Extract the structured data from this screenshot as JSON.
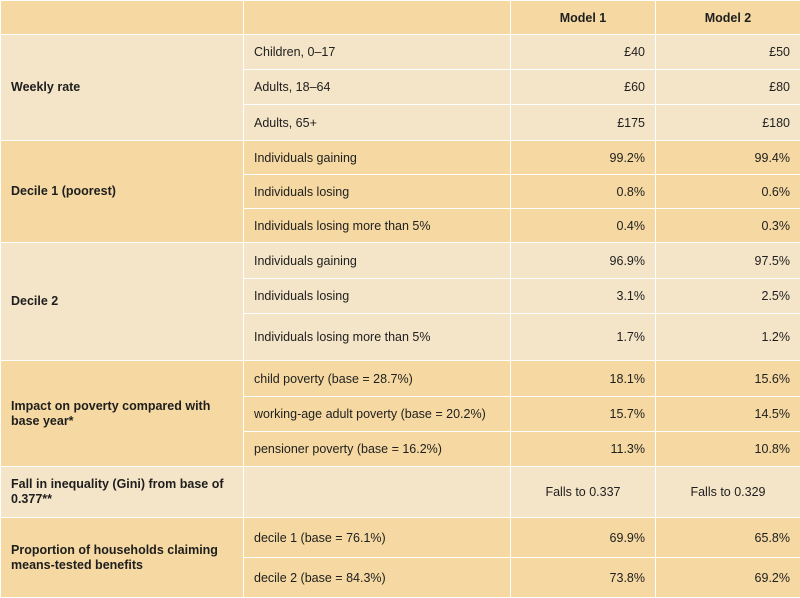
{
  "header": {
    "col1": "",
    "col2": "",
    "model1": "Model 1",
    "model2": "Model 2"
  },
  "groups": [
    {
      "label": "Weekly rate",
      "rows": [
        {
          "item": "Children, 0–17",
          "m1": "£40",
          "m2": "£50"
        },
        {
          "item": "Adults, 18–64",
          "m1": "£60",
          "m2": "£80"
        },
        {
          "item": "Adults, 65+",
          "m1": "£175",
          "m2": "£180"
        }
      ]
    },
    {
      "label": "Decile 1 (poorest)",
      "rows": [
        {
          "item": "Individuals gaining",
          "m1": "99.2%",
          "m2": "99.4%"
        },
        {
          "item": "Individuals losing",
          "m1": "0.8%",
          "m2": "0.6%"
        },
        {
          "item": "Individuals losing more than 5%",
          "m1": "0.4%",
          "m2": "0.3%"
        }
      ]
    },
    {
      "label": "Decile 2",
      "rows": [
        {
          "item": "Individuals gaining",
          "m1": "96.9%",
          "m2": "97.5%"
        },
        {
          "item": "Individuals losing",
          "m1": "3.1%",
          "m2": "2.5%"
        },
        {
          "item": "Individuals losing more than 5%",
          "m1": "1.7%",
          "m2": "1.2%"
        }
      ]
    },
    {
      "label": "Impact on poverty compared with base year*",
      "rows": [
        {
          "item": "child poverty (base = 28.7%)",
          "m1": "18.1%",
          "m2": "15.6%"
        },
        {
          "item": "working-age adult poverty (base = 20.2%)",
          "m1": "15.7%",
          "m2": "14.5%"
        },
        {
          "item": "pensioner poverty (base = 16.2%)",
          "m1": "11.3%",
          "m2": "10.8%"
        }
      ]
    },
    {
      "label": "Fall in inequality (Gini) from base of 0.377**",
      "rows": [
        {
          "item": "",
          "m1": "Falls to 0.337",
          "m2": "Falls to 0.329"
        }
      ]
    },
    {
      "label": "Proportion of households claiming means-tested benefits",
      "rows": [
        {
          "item": "decile 1 (base = 76.1%)",
          "m1": "69.9%",
          "m2": "65.8%"
        },
        {
          "item": "decile 2 (base = 84.3%)",
          "m1": "73.8%",
          "m2": "69.2%"
        }
      ]
    }
  ],
  "colors": {
    "band_light": "#f5e5c8",
    "band_dark": "#f6d9a2"
  }
}
